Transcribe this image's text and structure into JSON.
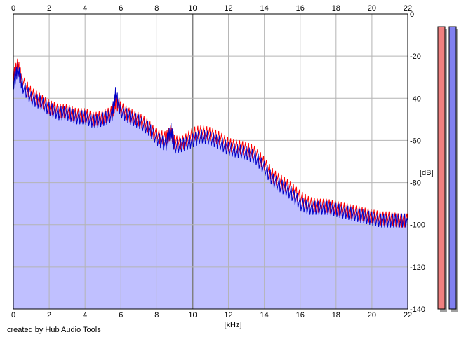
{
  "credit": "created by Hub Audio Tools",
  "chart_data": {
    "type": "area",
    "title": "",
    "xlabel": "[kHz]",
    "ylabel": "[dB]",
    "xlim": [
      0,
      22
    ],
    "ylim": [
      -140,
      0
    ],
    "x_ticks": [
      0,
      2,
      4,
      6,
      8,
      10,
      12,
      14,
      16,
      18,
      20,
      22
    ],
    "y_ticks": [
      0,
      -20,
      -40,
      -60,
      -80,
      -100,
      -120,
      -140
    ],
    "grid": true,
    "colors": {
      "fill": "#c0c0ff",
      "left": "#ff0000",
      "right": "#0000c8",
      "grid": "#b4b4b4",
      "major_grid": "#808080",
      "meter_left": "#f08080",
      "meter_right": "#8080f0"
    },
    "series": [
      {
        "color": "#ff0000",
        "x": [
          0,
          0.25,
          0.5,
          1,
          1.5,
          2,
          2.5,
          3,
          3.5,
          4,
          4.5,
          5,
          5.5,
          5.7,
          6,
          6.5,
          7,
          7.5,
          8,
          8.5,
          8.8,
          9,
          9.5,
          10,
          10.5,
          11,
          11.5,
          12,
          12.5,
          13,
          13.5,
          14,
          14.5,
          15,
          15.5,
          16,
          16.5,
          17,
          17.5,
          18,
          18.5,
          19,
          19.5,
          20,
          20.5,
          21,
          21.5,
          22
        ],
        "values": [
          -30,
          -24,
          -32,
          -38,
          -41,
          -44,
          -46,
          -46,
          -48,
          -48,
          -50,
          -49,
          -47,
          -42,
          -45,
          -48,
          -50,
          -53,
          -58,
          -59,
          -56,
          -61,
          -61,
          -57,
          -56,
          -57,
          -59,
          -62,
          -63,
          -64,
          -66,
          -71,
          -77,
          -80,
          -83,
          -87,
          -90,
          -91,
          -91,
          -92,
          -93,
          -94,
          -95,
          -96,
          -97,
          -97,
          -98,
          -98
        ]
      },
      {
        "color": "#0000c8",
        "x": [
          0,
          0.25,
          0.5,
          1,
          1.5,
          2,
          2.5,
          3,
          3.5,
          4,
          4.5,
          5,
          5.5,
          5.7,
          6,
          6.5,
          7,
          7.5,
          8,
          8.5,
          8.8,
          9,
          9.5,
          10,
          10.5,
          11,
          11.5,
          12,
          12.5,
          13,
          13.5,
          14,
          14.5,
          15,
          15.5,
          16,
          16.5,
          17,
          17.5,
          18,
          18.5,
          19,
          19.5,
          20,
          20.5,
          21,
          21.5,
          22
        ],
        "values": [
          -33,
          -26,
          -34,
          -40,
          -42,
          -45,
          -47,
          -47,
          -49,
          -49,
          -51,
          -50,
          -48,
          -38,
          -46,
          -49,
          -51,
          -54,
          -59,
          -62,
          -55,
          -63,
          -62,
          -60,
          -58,
          -59,
          -61,
          -64,
          -65,
          -66,
          -68,
          -73,
          -79,
          -82,
          -85,
          -90,
          -92,
          -92,
          -92,
          -93,
          -94,
          -95,
          -96,
          -97,
          -98,
          -98,
          -98,
          -98
        ]
      }
    ],
    "meters": [
      {
        "color": "#f08080",
        "top_db": -6
      },
      {
        "color": "#8080f0",
        "top_db": -6
      }
    ]
  }
}
